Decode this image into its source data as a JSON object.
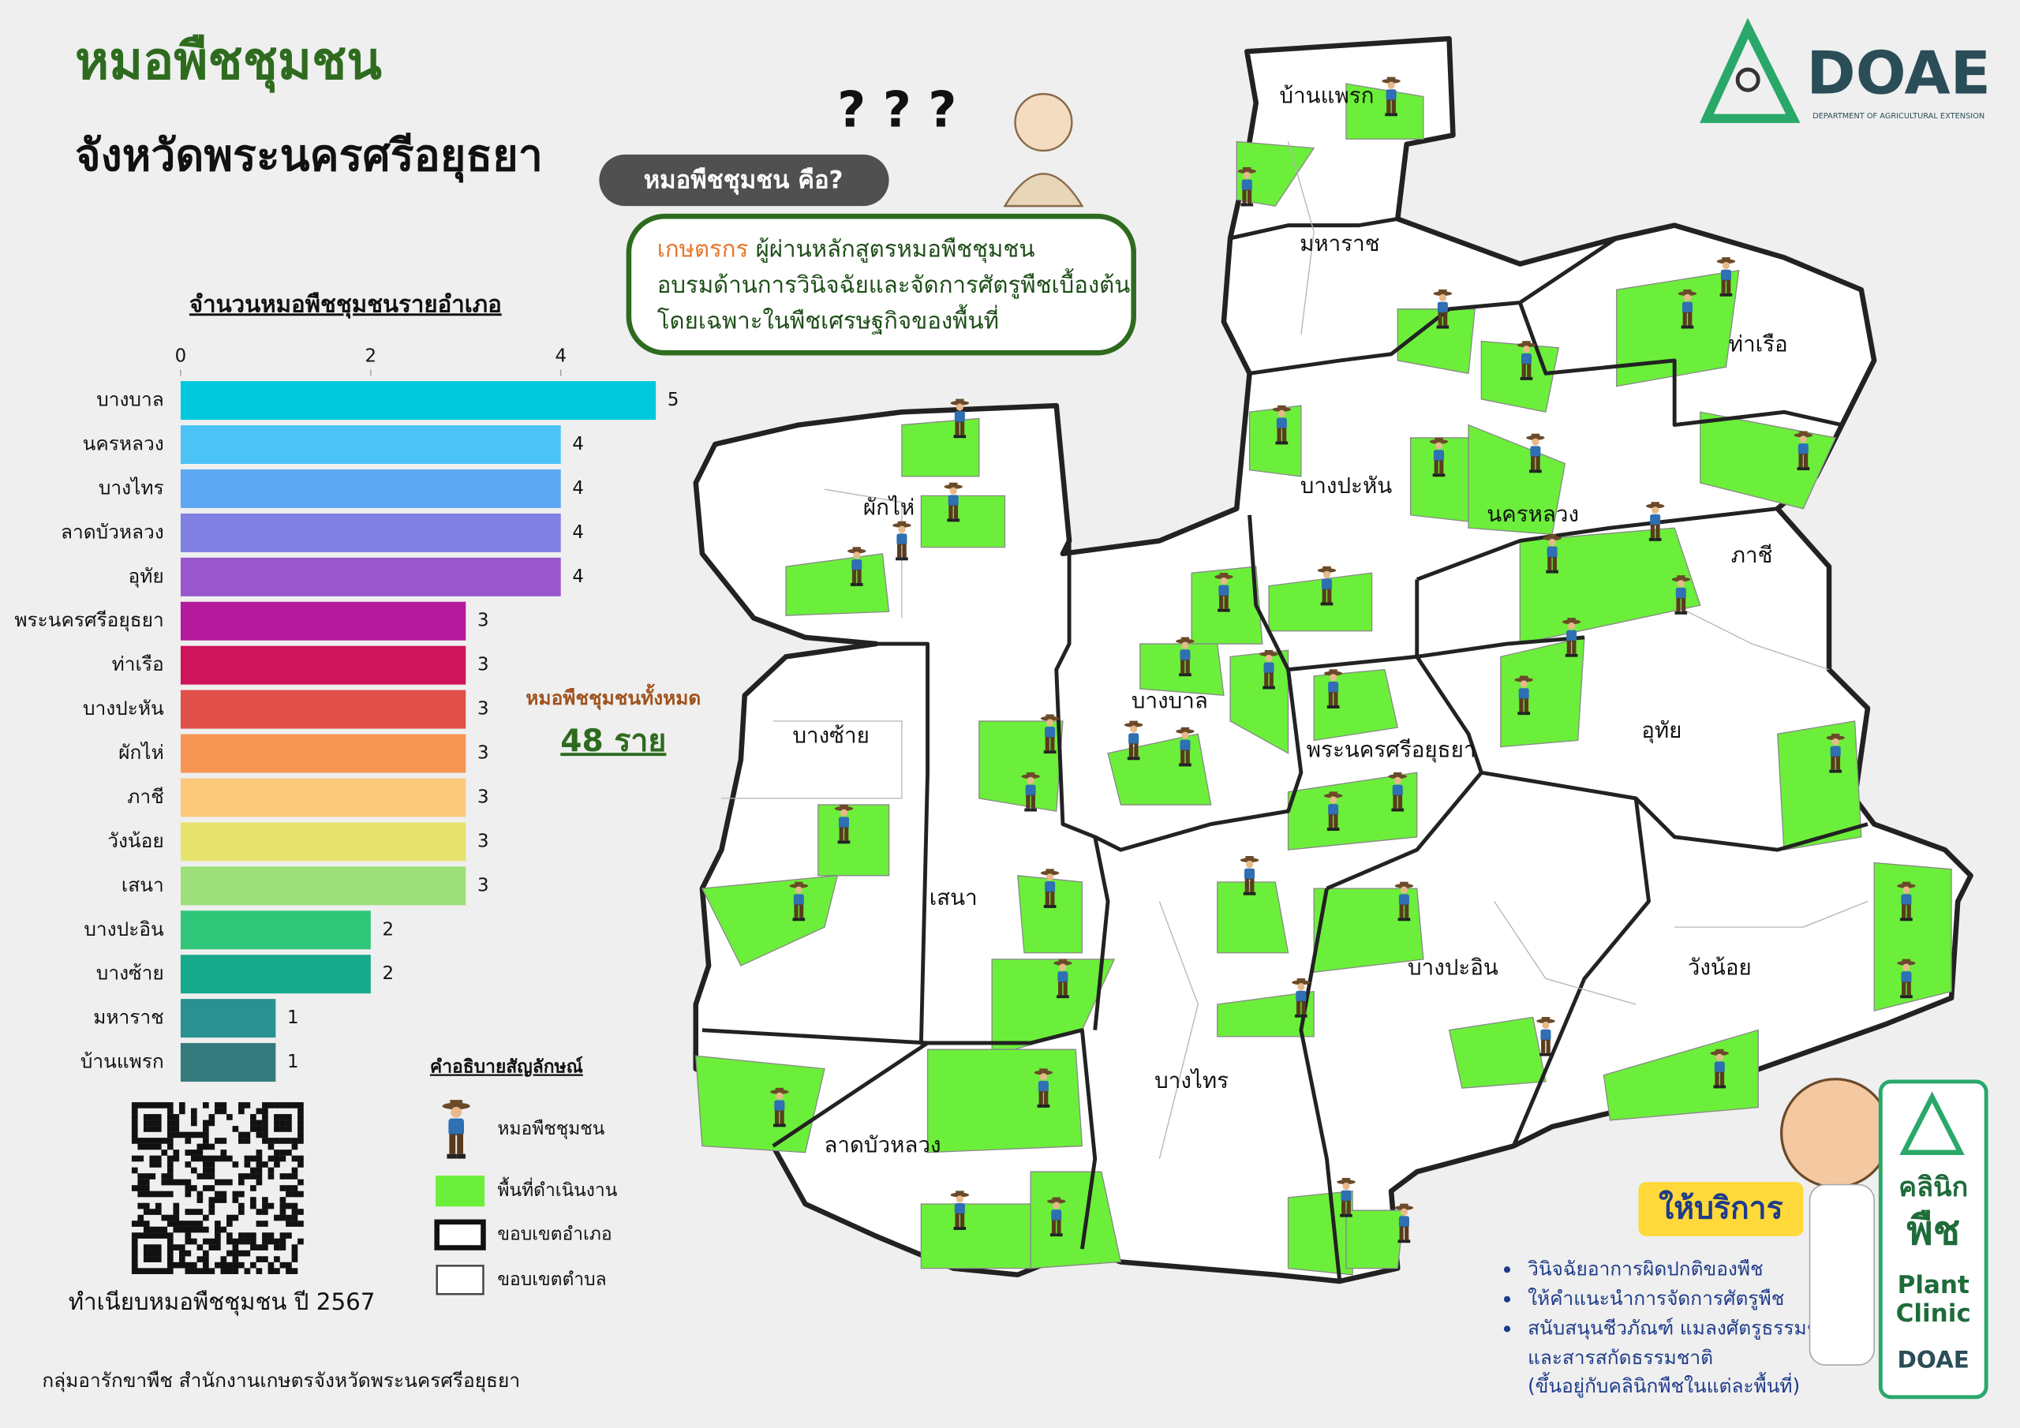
{
  "header": {
    "title": "หมอพืชชุมชน",
    "subtitle": "จังหวัดพระนครศรีอยุธยา"
  },
  "chart_data": {
    "type": "bar",
    "orientation": "horizontal",
    "title": "จำนวนหมอพืชชุมชนรายอำเภอ",
    "categories": [
      "บางบาล",
      "นครหลวง",
      "บางไทร",
      "ลาดบัวหลวง",
      "อุทัย",
      "พระนครศรีอยุธยา",
      "ท่าเรือ",
      "บางปะหัน",
      "ผักไห่",
      "ภาชี",
      "วังน้อย",
      "เสนา",
      "บางปะอิน",
      "บางซ้าย",
      "มหาราช",
      "บ้านแพรก"
    ],
    "values": [
      5,
      4,
      4,
      4,
      4,
      3,
      3,
      3,
      3,
      3,
      3,
      3,
      2,
      2,
      1,
      1
    ],
    "colors": [
      "#00c9de",
      "#4cc3f7",
      "#5ea8f3",
      "#7f80e2",
      "#9a57cc",
      "#b51a9c",
      "#d0145c",
      "#e05049",
      "#f69554",
      "#fbc87c",
      "#e6e26e",
      "#9ddf79",
      "#2fc67a",
      "#16a98a",
      "#2a9191",
      "#357a7d"
    ],
    "xlim": [
      0,
      5
    ],
    "xticks": [
      0,
      2,
      4
    ]
  },
  "total": {
    "label": "หมอพืชชุมชนทั้งหมด",
    "value": "48 ราย"
  },
  "callout": {
    "question": "หมอพืชชุมชน คือ?",
    "highlight": "เกษตรกร",
    "line1": " ผู้ผ่านหลักสูตรหมอพืชชุมชน",
    "line2": "อบรมด้านการวินิจฉัยและจัดการศัตรูพืชเบื้องต้น",
    "line3": "โดยเฉพาะในพืชเศรษฐกิจของพื้นที่"
  },
  "legend": {
    "title": "คำอธิบายสัญลักษณ์",
    "items": [
      "หมอพืชชุมชน",
      "พื้นที่ดำเนินงาน",
      "ขอบเขตอำเภอ",
      "ขอบเขตตำบล"
    ]
  },
  "qr_caption": "ทำเนียบหมอพืชชุมชน ปี 2567",
  "footer": "กลุ่มอารักขาพืช สำนักงานเกษตรจังหวัดพระนครศรีอยุธยา",
  "logo": {
    "name": "DOAE",
    "full": "DEPARTMENT OF AGRICULTURAL EXTENSION"
  },
  "map": {
    "districts": [
      "บ้านแพรก",
      "มหาราช",
      "ท่าเรือ",
      "ผักไห่",
      "บางปะหัน",
      "นครหลวง",
      "ภาชี",
      "บางบาล",
      "บางซ้าย",
      "พระนครศรีอยุธยา",
      "อุทัย",
      "เสนา",
      "บางปะอิน",
      "วังน้อย",
      "บางไทร",
      "ลาดบัวหลวง"
    ]
  },
  "services": {
    "title": "ให้บริการ",
    "items": [
      "วินิจฉัยอาการผิดปกติของพืช",
      "ให้คำแนะนำการจัดการศัตรูพืช",
      "สนับสนุนชีวภัณฑ์ แมลงศัตรูธรรมชาติ"
    ],
    "continuation": [
      "และสารสกัดธรรมชาติ",
      "(ขึ้นอยู่กับคลินิกพืชในแต่ละพื้นที่)"
    ]
  },
  "clinic_card": {
    "th1": "คลินิก",
    "th2": "พืช",
    "en1": "Plant",
    "en2": "Clinic",
    "brand": "DOAE"
  }
}
